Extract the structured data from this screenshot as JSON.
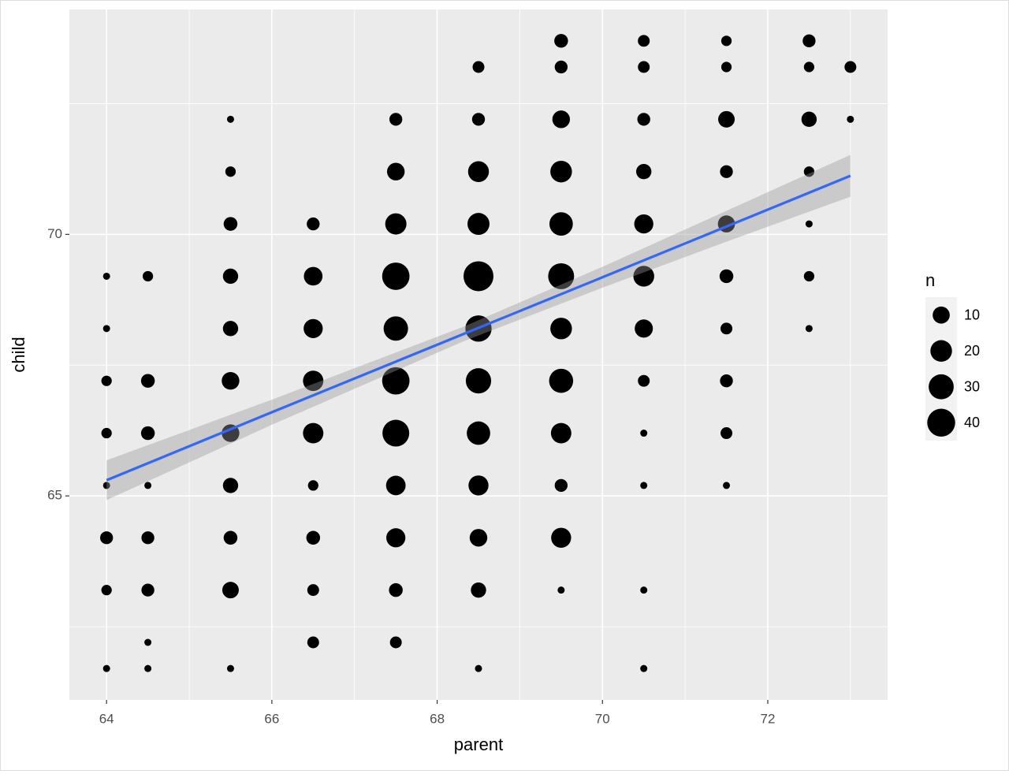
{
  "chart_data": {
    "type": "scatter",
    "x_label": "parent",
    "y_label": "child",
    "legend_title": "n",
    "legend_values": [
      10,
      20,
      30,
      40
    ],
    "point_color": "#000000",
    "line_color": "#3366ff",
    "ribbon_color": "#999999",
    "panel_color": "#ebebeb",
    "grid": true,
    "legend_position": "right",
    "xlim": [
      63.55,
      73.45
    ],
    "ylim": [
      61.1,
      74.3
    ],
    "xticks": [
      64,
      66,
      68,
      70,
      72
    ],
    "yticks": [
      65,
      70
    ],
    "x": [
      69.5,
      70.5,
      71.5,
      72.5,
      68.5,
      69.5,
      70.5,
      71.5,
      72.5,
      73,
      65.5,
      67.5,
      68.5,
      69.5,
      70.5,
      71.5,
      72.5,
      73,
      65.5,
      67.5,
      68.5,
      69.5,
      70.5,
      71.5,
      72.5,
      65.5,
      66.5,
      67.5,
      68.5,
      69.5,
      70.5,
      71.5,
      72.5,
      64,
      64.5,
      65.5,
      66.5,
      67.5,
      68.5,
      69.5,
      70.5,
      71.5,
      72.5,
      64,
      65.5,
      66.5,
      67.5,
      68.5,
      69.5,
      70.5,
      71.5,
      72.5,
      64,
      64.5,
      65.5,
      66.5,
      67.5,
      68.5,
      69.5,
      70.5,
      71.5,
      64,
      64.5,
      65.5,
      66.5,
      67.5,
      68.5,
      69.5,
      70.5,
      71.5,
      64,
      64.5,
      65.5,
      66.5,
      67.5,
      68.5,
      69.5,
      70.5,
      71.5,
      64,
      64.5,
      65.5,
      66.5,
      67.5,
      68.5,
      69.5,
      64,
      64.5,
      65.5,
      66.5,
      67.5,
      68.5,
      69.5,
      70.5,
      64.5,
      66.5,
      67.5,
      64,
      64.5,
      65.5,
      68.5,
      70.5
    ],
    "y": [
      73.7,
      73.7,
      73.7,
      73.7,
      73.2,
      73.2,
      73.2,
      73.2,
      73.2,
      73.2,
      72.2,
      72.2,
      72.2,
      72.2,
      72.2,
      72.2,
      72.2,
      72.2,
      71.2,
      71.2,
      71.2,
      71.2,
      71.2,
      71.2,
      71.2,
      70.2,
      70.2,
      70.2,
      70.2,
      70.2,
      70.2,
      70.2,
      70.2,
      69.2,
      69.2,
      69.2,
      69.2,
      69.2,
      69.2,
      69.2,
      69.2,
      69.2,
      69.2,
      68.2,
      68.2,
      68.2,
      68.2,
      68.2,
      68.2,
      68.2,
      68.2,
      68.2,
      67.2,
      67.2,
      67.2,
      67.2,
      67.2,
      67.2,
      67.2,
      67.2,
      67.2,
      66.2,
      66.2,
      66.2,
      66.2,
      66.2,
      66.2,
      66.2,
      66.2,
      66.2,
      65.2,
      65.2,
      65.2,
      65.2,
      65.2,
      65.2,
      65.2,
      65.2,
      65.2,
      64.2,
      64.2,
      64.2,
      64.2,
      64.2,
      64.2,
      64.2,
      63.2,
      63.2,
      63.2,
      63.2,
      63.2,
      63.2,
      63.2,
      63.2,
      62.2,
      62.2,
      62.2,
      61.7,
      61.7,
      61.7,
      61.7,
      61.7
    ],
    "sizes": [
      5,
      3,
      2,
      4,
      3,
      4,
      3,
      2,
      2,
      3,
      1,
      4,
      4,
      11,
      4,
      9,
      7,
      1,
      2,
      11,
      18,
      20,
      7,
      4,
      2,
      5,
      4,
      19,
      21,
      25,
      14,
      10,
      1,
      1,
      2,
      7,
      13,
      38,
      48,
      33,
      18,
      5,
      2,
      1,
      7,
      14,
      28,
      34,
      20,
      12,
      3,
      1,
      2,
      5,
      11,
      17,
      38,
      31,
      27,
      3,
      4,
      2,
      5,
      11,
      17,
      36,
      25,
      17,
      1,
      3,
      1,
      1,
      7,
      2,
      15,
      16,
      4,
      1,
      1,
      4,
      4,
      5,
      5,
      14,
      11,
      16,
      2,
      4,
      9,
      3,
      5,
      7,
      1,
      1,
      1,
      3,
      3,
      1,
      1,
      1,
      1,
      1
    ],
    "fit": {
      "x": [
        64,
        66,
        68.31,
        70,
        71.5,
        73
      ],
      "y": [
        65.3,
        66.6,
        68.09,
        69.18,
        70.15,
        71.12
      ],
      "lower": [
        64.92,
        66.36,
        67.95,
        68.98,
        69.86,
        70.72
      ],
      "upper": [
        65.68,
        66.84,
        68.23,
        69.38,
        70.45,
        71.52
      ]
    }
  }
}
